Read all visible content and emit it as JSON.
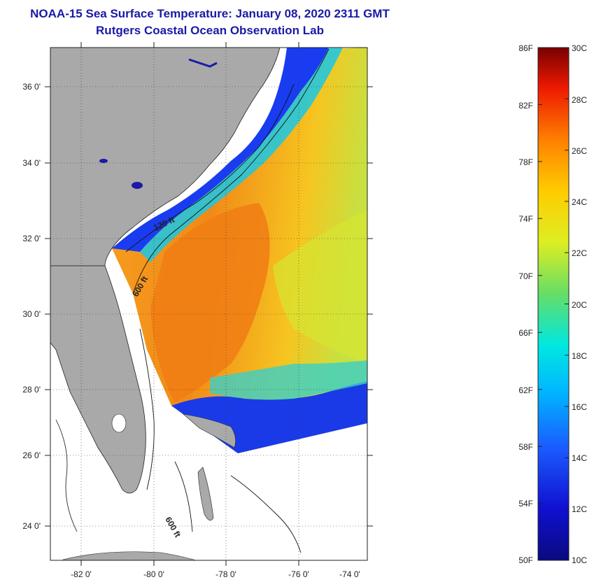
{
  "header": {
    "title": "NOAA-15 Sea Surface Temperature:  January 08, 2020 2311 GMT",
    "subtitle": "Rutgers Coastal Ocean Observation Lab"
  },
  "map": {
    "lat_ticks": [
      "36 0'",
      "34 0'",
      "32 0'",
      "30 0'",
      "28 0'",
      "26 0'",
      "24 0'"
    ],
    "lon_ticks": [
      "-82 0'",
      "-80 0'",
      "-78 0'",
      "-76 0'",
      "-74 0'"
    ],
    "isobath_labels": [
      "120 ft",
      "600 ft",
      "600 ft"
    ]
  },
  "colorbar": {
    "fahrenheit": [
      "86F",
      "82F",
      "78F",
      "74F",
      "70F",
      "66F",
      "62F",
      "58F",
      "54F",
      "50F"
    ],
    "celsius": [
      "30C",
      "28C",
      "26C",
      "24C",
      "22C",
      "20C",
      "18C",
      "16C",
      "14C",
      "12C",
      "10C"
    ]
  },
  "colors": {
    "title": "#1a1aa6",
    "land": "#a9a9a9",
    "warm": "#f08a1a",
    "cold": "#1430d8"
  }
}
